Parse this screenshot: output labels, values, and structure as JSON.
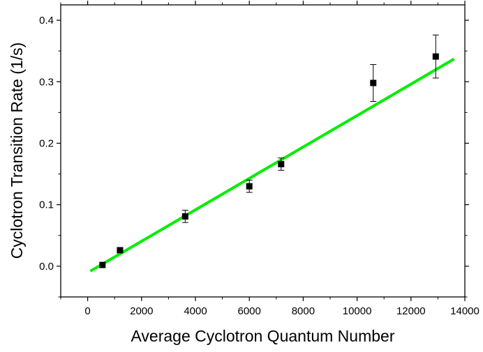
{
  "chart_data": {
    "type": "scatter",
    "xlabel": "Average Cyclotron Quantum Number",
    "ylabel": "Cyclotron Transition Rate (1/s)",
    "xlim": [
      -1000,
      14000
    ],
    "ylim": [
      -0.05,
      0.425
    ],
    "x_ticks": [
      {
        "value": 0,
        "label": "0"
      },
      {
        "value": 2000,
        "label": "2000"
      },
      {
        "value": 4000,
        "label": "4000"
      },
      {
        "value": 6000,
        "label": "6000"
      },
      {
        "value": 8000,
        "label": "8000"
      },
      {
        "value": 10000,
        "label": "10000"
      },
      {
        "value": 12000,
        "label": "12000"
      },
      {
        "value": 14000,
        "label": "14000"
      }
    ],
    "y_ticks": [
      {
        "value": 0.0,
        "label": "0.0"
      },
      {
        "value": 0.1,
        "label": "0.1"
      },
      {
        "value": 0.2,
        "label": "0.2"
      },
      {
        "value": 0.3,
        "label": "0.3"
      },
      {
        "value": 0.4,
        "label": "0.4"
      }
    ],
    "grid": false,
    "series": [
      {
        "kind": "points",
        "color": "#000000",
        "marker": "square",
        "points": [
          {
            "x": 550,
            "y": 0.002,
            "err": 0
          },
          {
            "x": 1200,
            "y": 0.026,
            "err": 0
          },
          {
            "x": 3620,
            "y": 0.081,
            "err": 0.01
          },
          {
            "x": 6000,
            "y": 0.13,
            "err": 0.01
          },
          {
            "x": 7180,
            "y": 0.166,
            "err": 0.01
          },
          {
            "x": 10600,
            "y": 0.298,
            "err": 0.03
          },
          {
            "x": 12920,
            "y": 0.341,
            "err": 0.035
          }
        ]
      },
      {
        "kind": "fit-line",
        "color": "#00ee00",
        "points": [
          {
            "x": 100,
            "y": -0.008
          },
          {
            "x": 13600,
            "y": 0.337
          }
        ]
      }
    ]
  }
}
